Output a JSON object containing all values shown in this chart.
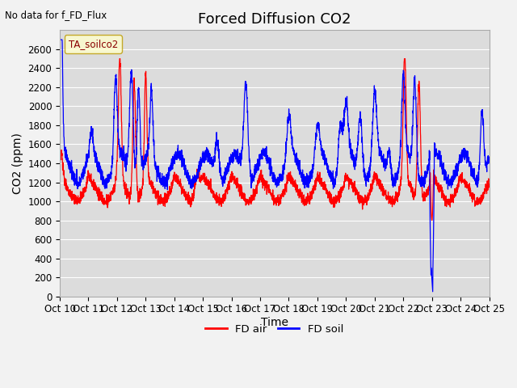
{
  "title": "Forced Diffusion CO2",
  "top_left_text": "No data for f_FD_Flux",
  "legend_label_text": "TA_soilco2",
  "xlabel": "Time",
  "ylabel": "CO2 (ppm)",
  "ylim": [
    0,
    2800
  ],
  "yticks": [
    0,
    200,
    400,
    600,
    800,
    1000,
    1200,
    1400,
    1600,
    1800,
    2000,
    2200,
    2400,
    2600
  ],
  "bg_color": "#dcdcdc",
  "plot_bg_color": "#dcdcdc",
  "line_color_air": "#ff0000",
  "line_color_soil": "#0000ff",
  "legend_entries": [
    "FD air",
    "FD soil"
  ],
  "xtick_labels": [
    "Oct 10",
    "Oct 11",
    "Oct 12",
    "Oct 13",
    "Oct 14",
    "Oct 15",
    "Oct 16",
    "Oct 17",
    "Oct 18",
    "Oct 19",
    "Oct 20",
    "Oct 21",
    "Oct 22",
    "Oct 23",
    "Oct 24",
    "Oct 25"
  ],
  "xtick_labels_display": [
    "Oct 10",
    "Oct 11",
    "Oct 12",
    "Oct 13",
    "Oct 14",
    "Oct 15",
    "Oct 16",
    "Oct 17",
    "Oct 18",
    "Oct 19",
    "Oct 20",
    "Oct 21",
    "Oct 22",
    "Oct 23",
    "Oct 24",
    "Oct 25"
  ],
  "title_fontsize": 13,
  "axis_fontsize": 10,
  "tick_fontsize": 8.5
}
